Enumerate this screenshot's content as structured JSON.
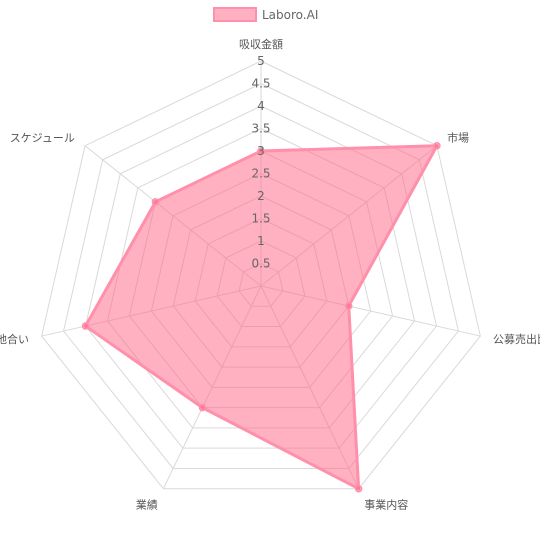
{
  "chart_data": {
    "type": "radar",
    "categories": [
      "吸収金額",
      "市場",
      "公募売出比",
      "事業内容",
      "業績",
      "地合い",
      "スケジュール"
    ],
    "series": [
      {
        "name": "Laboro.AI",
        "values": [
          3,
          5,
          2,
          5,
          3,
          4,
          3
        ]
      }
    ],
    "rlim": [
      0,
      5
    ],
    "ticks": [
      "0.5",
      "1",
      "1.5",
      "2",
      "2.5",
      "3",
      "3.5",
      "4",
      "4.5",
      "5"
    ],
    "legend_position": "top",
    "grid": true
  },
  "colors": {
    "series_fill": "rgba(255, 99, 132, 0.5)",
    "series_stroke": "#ff8fab",
    "grid": "#d9d9d9"
  }
}
